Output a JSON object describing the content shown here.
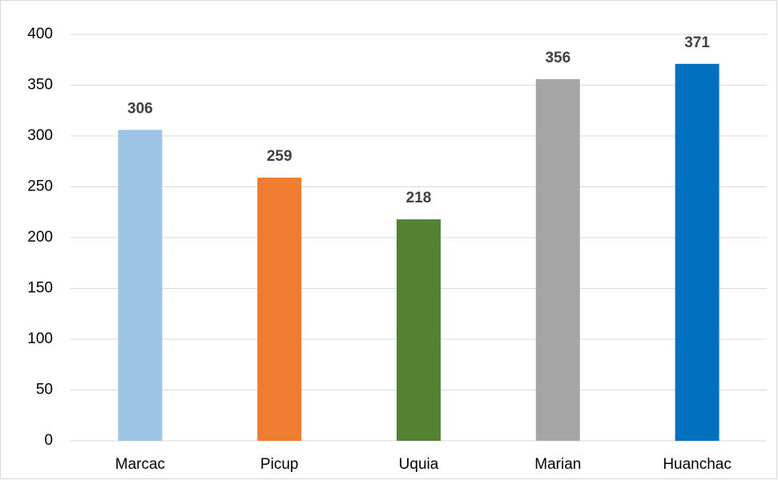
{
  "chart_data": {
    "type": "bar",
    "categories": [
      "Marcac",
      "Picup",
      "Uquia",
      "Marian",
      "Huanchac"
    ],
    "values": [
      306,
      259,
      218,
      356,
      371
    ],
    "colors": [
      "#9dc3e6",
      "#ed7d31",
      "#548235",
      "#a5a5a5",
      "#0070c0"
    ],
    "ylim": [
      0,
      400
    ],
    "yticks": [
      0,
      50,
      100,
      150,
      200,
      250,
      300,
      350,
      400
    ],
    "grid": true
  }
}
